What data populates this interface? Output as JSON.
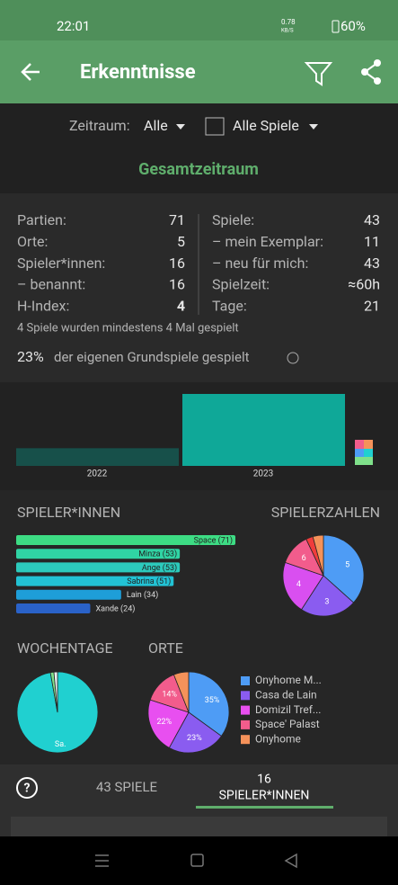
{
  "status": {
    "time": "22:01",
    "speed": "0.78",
    "speed_unit": "KB/S",
    "battery": "60%"
  },
  "appbar": {
    "title": "Erkenntnisse"
  },
  "filters": {
    "period_label": "Zeitraum:",
    "period_value": "Alle",
    "games_value": "Alle Spiele"
  },
  "period_title": "Gesamtzeitraum",
  "stats": {
    "left": [
      {
        "label": "Partien:",
        "value": 71
      },
      {
        "label": "Orte:",
        "value": 5
      },
      {
        "label": "Spieler*innen:",
        "value": 16
      },
      {
        "label": "– benannt:",
        "value": 16
      },
      {
        "label": "H-Index:",
        "value": 4
      }
    ],
    "right": [
      {
        "label": "Spiele:",
        "value": 43
      },
      {
        "label": "– mein Exemplar:",
        "value": 11
      },
      {
        "label": "– neu für mich:",
        "value": 43
      },
      {
        "label": "Spielzeit:",
        "value": "≈60h"
      },
      {
        "label": "Tage:",
        "value": 21
      }
    ],
    "note": "4 Spiele wurden mindestens 4 Mal gespielt",
    "owned_percent": "23%",
    "owned_text": "der eigenen Grundspiele gespielt"
  },
  "year_chart": {
    "categories": [
      "2022",
      "2023"
    ],
    "values": [
      14,
      57
    ],
    "colors": [
      "#17504a",
      "#0fa898"
    ]
  },
  "players": {
    "title": "SPIELER*INNEN",
    "labels": [
      "Space (71)",
      "Minza (53)",
      "Ange (53)",
      "Sabrina (51)",
      "Lain (34)",
      "Xande (24)"
    ],
    "values": [
      71,
      53,
      53,
      51,
      34,
      24
    ],
    "colors": [
      "#3ddc84",
      "#30d4a4",
      "#2ccabc",
      "#22c2d4",
      "#1e9ed8",
      "#2a62c8"
    ]
  },
  "player_counts": {
    "title": "SPIELERZAHLEN",
    "categories": [
      "5",
      "3",
      "4",
      "6",
      null,
      null
    ],
    "values": [
      26,
      16,
      15,
      9,
      2,
      3
    ],
    "colors": [
      "#4e9cf5",
      "#8a5cf0",
      "#d94ff0",
      "#f25c8c",
      "#f03c3c",
      "#f5925a"
    ]
  },
  "weekdays": {
    "title": "WOCHENTAGE",
    "categories": [
      "Sa.",
      null,
      null
    ],
    "values": [
      69,
      1,
      1
    ],
    "colors": [
      "#20d0d0",
      "#7fe08a",
      "#e8f0f0"
    ]
  },
  "places": {
    "title": "ORTE",
    "categories": [
      "Onyhome M...",
      "Casa de Lain",
      "Domizil Tref...",
      "Space' Palast",
      "Onyhome"
    ],
    "values": [
      35,
      23,
      22,
      14,
      6
    ],
    "value_labels": [
      "35%",
      "23%",
      "22%",
      "14%",
      null
    ],
    "colors": [
      "#4e9cf5",
      "#8a5cf0",
      "#e84ff0",
      "#f25c8c",
      "#f5925a"
    ]
  },
  "tabs": {
    "games": "43 SPIELE",
    "players_count": "16",
    "players": "SPIELER*INNEN"
  }
}
